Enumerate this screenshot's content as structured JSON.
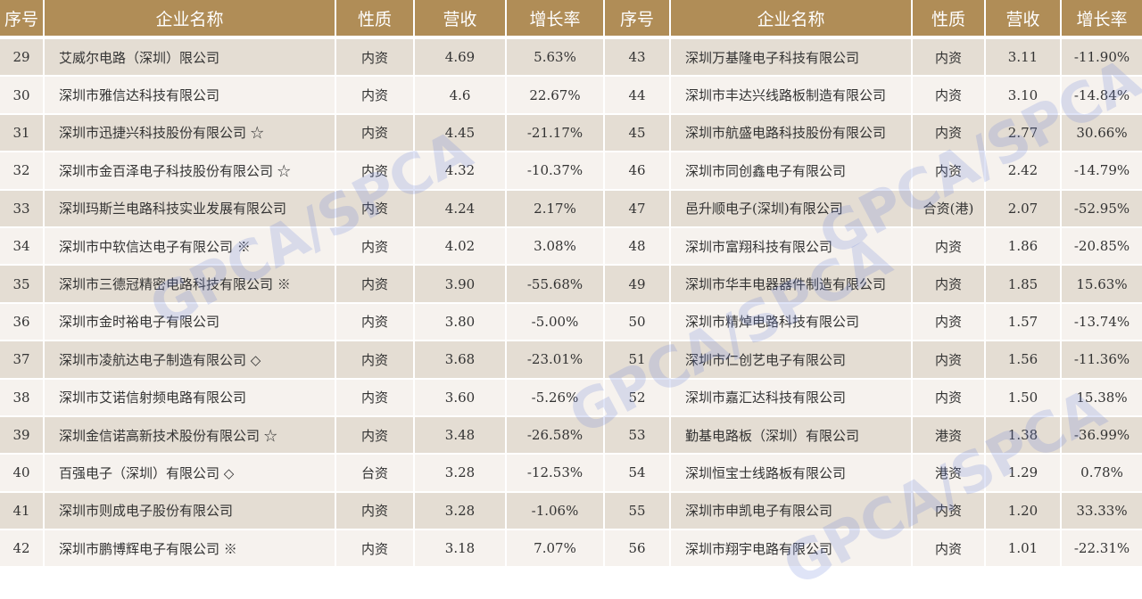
{
  "headers": [
    "序号",
    "企业名称",
    "性质",
    "营收",
    "增长率"
  ],
  "watermark": "GPCA/SPCA",
  "colors": {
    "header": "#b08d57",
    "row_dark": "#e4ddd3",
    "row_light": "#f6f2ee",
    "watermark": "#6e82dc"
  },
  "left_rows": [
    [
      "29",
      "艾威尔电路（深圳）限公司",
      "内资",
      "4.69",
      "5.63%"
    ],
    [
      "30",
      "深圳市雅信达科技有限公司",
      "内资",
      "4.6",
      "22.67%"
    ],
    [
      "31",
      "深圳市迅捷兴科技股份有限公司 ☆",
      "内资",
      "4.45",
      "-21.17%"
    ],
    [
      "32",
      "深圳市金百泽电子科技股份有限公司 ☆",
      "内资",
      "4.32",
      "-10.37%"
    ],
    [
      "33",
      "深圳玛斯兰电路科技实业发展有限公司",
      "内资",
      "4.24",
      "2.17%"
    ],
    [
      "34",
      "深圳市中软信达电子有限公司 ※",
      "内资",
      "4.02",
      "3.08%"
    ],
    [
      "35",
      "深圳市三德冠精密电路科技有限公司 ※",
      "内资",
      "3.90",
      "-55.68%"
    ],
    [
      "36",
      "深圳市金时裕电子有限公司",
      "内资",
      "3.80",
      "-5.00%"
    ],
    [
      "37",
      "深圳市凌航达电子制造有限公司 ◇",
      "内资",
      "3.68",
      "-23.01%"
    ],
    [
      "38",
      "深圳市艾诺信射频电路有限公司",
      "内资",
      "3.60",
      "-5.26%"
    ],
    [
      "39",
      "深圳金信诺高新技术股份有限公司 ☆",
      "内资",
      "3.48",
      "-26.58%"
    ],
    [
      "40",
      "百强电子（深圳）有限公司 ◇",
      "台资",
      "3.28",
      "-12.53%"
    ],
    [
      "41",
      "深圳市则成电子股份有限公司",
      "内资",
      "3.28",
      "-1.06%"
    ],
    [
      "42",
      "深圳市鹏博辉电子有限公司 ※",
      "内资",
      "3.18",
      "7.07%"
    ]
  ],
  "right_rows": [
    [
      "43",
      "深圳万基隆电子科技有限公司",
      "内资",
      "3.11",
      "-11.90%"
    ],
    [
      "44",
      "深圳市丰达兴线路板制造有限公司",
      "内资",
      "3.10",
      "-14.84%"
    ],
    [
      "45",
      "深圳市航盛电路科技股份有限公司",
      "内资",
      "2.77",
      "30.66%"
    ],
    [
      "46",
      "深圳市同创鑫电子有限公司",
      "内资",
      "2.42",
      "-14.79%"
    ],
    [
      "47",
      "邑升顺电子(深圳)有限公司",
      "合资(港)",
      "2.07",
      "-52.95%"
    ],
    [
      "48",
      "深圳市富翔科技有限公司",
      "内资",
      "1.86",
      "-20.85%"
    ],
    [
      "49",
      "深圳市华丰电器器件制造有限公司",
      "内资",
      "1.85",
      "15.63%"
    ],
    [
      "50",
      "深圳市精焯电路科技有限公司",
      "内资",
      "1.57",
      "-13.74%"
    ],
    [
      "51",
      "深圳市仁创艺电子有限公司",
      "内资",
      "1.56",
      "-11.36%"
    ],
    [
      "52",
      "深圳市嘉汇达科技有限公司",
      "内资",
      "1.50",
      "15.38%"
    ],
    [
      "53",
      "勤基电路板（深圳）有限公司",
      "港资",
      "1.38",
      "-36.99%"
    ],
    [
      "54",
      "深圳恒宝士线路板有限公司",
      "港资",
      "1.29",
      "0.78%"
    ],
    [
      "55",
      "深圳市申凯电子有限公司",
      "内资",
      "1.20",
      "33.33%"
    ],
    [
      "56",
      "深圳市翔宇电路有限公司",
      "内资",
      "1.01",
      "-22.31%"
    ]
  ]
}
